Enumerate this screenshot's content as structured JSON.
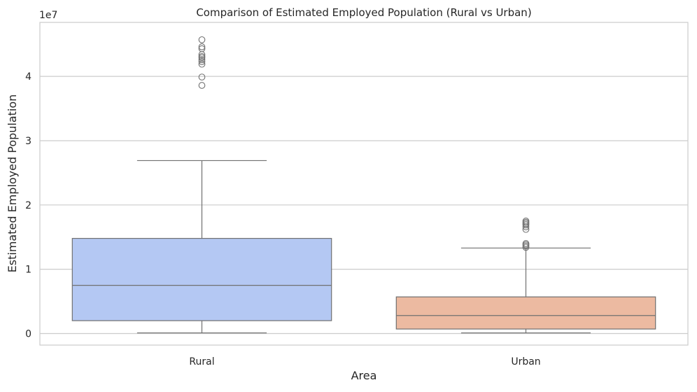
{
  "chart_data": {
    "type": "box",
    "title": "Comparison of Estimated Employed Population (Rural vs Urban)",
    "xlabel": "Area",
    "ylabel": "Estimated Employed Population",
    "y_scale_label": "1e7",
    "y_ticks": [
      0,
      1,
      2,
      3,
      4
    ],
    "ylim": [
      -0.18,
      4.84
    ],
    "y_units": "×1e7",
    "grid": "horizontal",
    "categories": [
      "Rural",
      "Urban"
    ],
    "boxes": [
      {
        "category": "Rural",
        "color": "#b4c8f3",
        "whisker_low": 0.01,
        "q1": 0.2,
        "median": 0.75,
        "q3": 1.48,
        "whisker_high": 2.69,
        "outliers": [
          3.86,
          3.99,
          4.19,
          4.23,
          4.26,
          4.29,
          4.31,
          4.34,
          4.43,
          4.46,
          4.57
        ]
      },
      {
        "category": "Urban",
        "color": "#ecbaa1",
        "whisker_low": 0.01,
        "q1": 0.07,
        "median": 0.28,
        "q3": 0.57,
        "whisker_high": 1.33,
        "outliers": [
          1.34,
          1.36,
          1.38,
          1.4,
          1.62,
          1.66,
          1.69,
          1.71,
          1.73,
          1.75
        ]
      }
    ]
  }
}
